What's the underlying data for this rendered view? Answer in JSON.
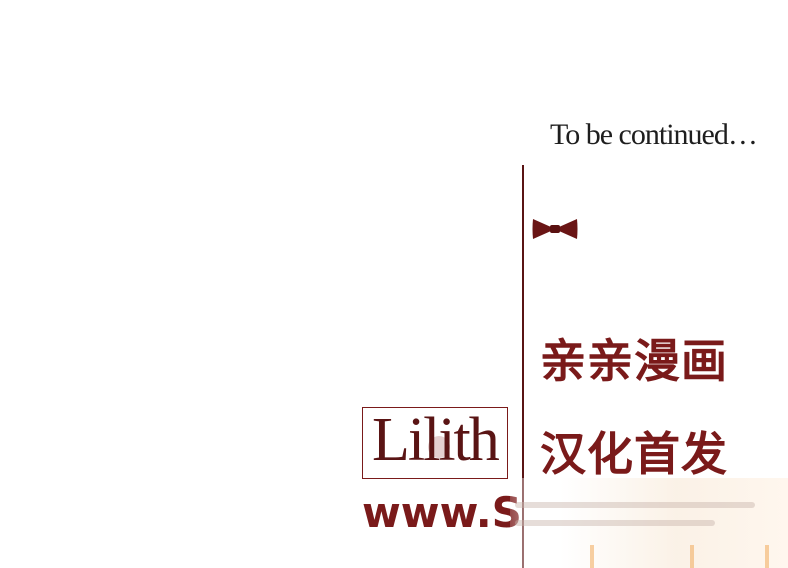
{
  "to_be_continued": "To be continued…",
  "chinese": {
    "line1": "亲亲漫画",
    "line2": "汉化首发"
  },
  "logo_text": "Lilith",
  "url_text": "www.S",
  "icons": {
    "bowtie": "bowtie-icon"
  },
  "colors": {
    "accent": "#7a1a1a",
    "line": "#5a1414"
  }
}
